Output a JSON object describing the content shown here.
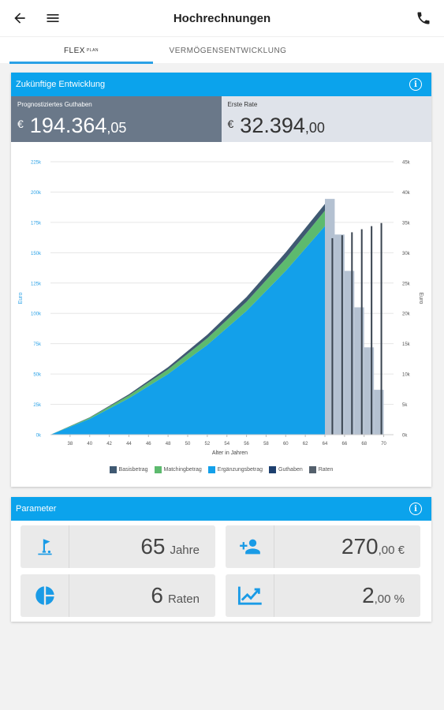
{
  "header": {
    "title": "Hochrechnungen",
    "back_icon": "arrow-left-icon",
    "menu_icon": "menu-icon",
    "phone_icon": "phone-icon"
  },
  "tabs": [
    {
      "label": "FLEX",
      "sup": "PLAN",
      "active": true
    },
    {
      "label": "VERMÖGENSENTWICKLUNG",
      "active": false
    }
  ],
  "development": {
    "title": "Zukünftige Entwicklung",
    "forecast": {
      "label": "Prognostiziertes Guthaben",
      "currency": "€",
      "integer": "194.364",
      "decimals": ",05"
    },
    "first_rate": {
      "label": "Erste Rate",
      "currency": "€",
      "integer": "32.394",
      "decimals": ",00"
    }
  },
  "chart_data": {
    "type": "area",
    "xlabel": "Alter in Jahren",
    "ylabel_left": "Euro",
    "ylabel_right": "Euro",
    "x_ticks": [
      "38",
      "40",
      "42",
      "44",
      "46",
      "48",
      "50",
      "52",
      "54",
      "56",
      "58",
      "60",
      "62",
      "64",
      "66",
      "68",
      "70"
    ],
    "y_left_ticks": [
      "0k",
      "25k",
      "50k",
      "75k",
      "100k",
      "125k",
      "150k",
      "175k",
      "200k",
      "225k"
    ],
    "y_right_ticks": [
      "0k",
      "5k",
      "10k",
      "15k",
      "20k",
      "25k",
      "30k",
      "35k",
      "40k",
      "45k"
    ],
    "ylim_left": [
      0,
      225000
    ],
    "ylim_right": [
      0,
      45000
    ],
    "xlim": [
      36,
      71
    ],
    "accumulation": {
      "x": [
        36,
        40,
        44,
        48,
        52,
        56,
        60,
        64
      ],
      "series": [
        {
          "name": "Ergänzungsbetrag",
          "values": [
            0,
            13000,
            30000,
            50000,
            74000,
            102000,
            135000,
            172000
          ]
        },
        {
          "name": "Matchingbetrag",
          "values": [
            0,
            1000,
            2300,
            3800,
            5500,
            7500,
            10000,
            12700
          ]
        },
        {
          "name": "Basisbetrag",
          "values": [
            0,
            300,
            1000,
            1900,
            2900,
            4000,
            5300,
            5500
          ]
        }
      ]
    },
    "payout": {
      "Guthaben_x": [
        64,
        65,
        66,
        67,
        68,
        69,
        70
      ],
      "Guthaben": [
        194364,
        165000,
        135000,
        105000,
        72000,
        37000,
        0
      ],
      "Raten_x": [
        65,
        66,
        67,
        68,
        69,
        70
      ],
      "Raten": [
        32394,
        32880,
        33370,
        33870,
        34380,
        34890
      ]
    },
    "legend": [
      "Basisbetrag",
      "Matchingbetrag",
      "Ergänzungsbetrag",
      "Guthaben",
      "Raten"
    ],
    "colors": {
      "Basisbetrag": "#3f5972",
      "Matchingbetrag": "#5dba6e",
      "Ergänzungsbetrag": "#13a0ea",
      "Guthaben": "#b4c1d1",
      "Raten": "#3a4450",
      "GuthabenLegend": "#1d3f6e",
      "RatenLegend": "#54606c"
    }
  },
  "parameters": {
    "title": "Parameter",
    "tiles": [
      {
        "icon": "golf-flag-icon",
        "value": "65",
        "unit": "Jahre"
      },
      {
        "icon": "add-person-icon",
        "value": "270",
        "unit": ",00 €"
      },
      {
        "icon": "pie-chart-icon",
        "value": "6",
        "unit": "Raten"
      },
      {
        "icon": "trend-up-icon",
        "value": "2",
        "unit": ",00 %"
      }
    ]
  }
}
